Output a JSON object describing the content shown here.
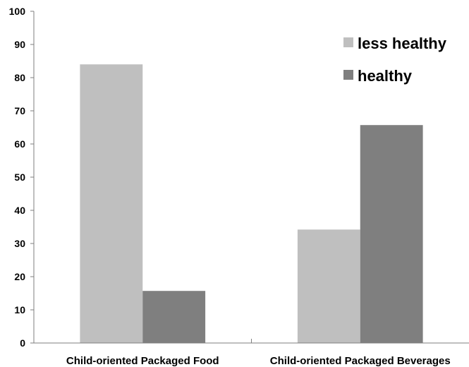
{
  "chart_data": {
    "type": "bar",
    "categories": [
      "Child-oriented Packaged Food",
      "Child-oriented Packaged Beverages"
    ],
    "series": [
      {
        "name": "less healthy",
        "values": [
          84,
          34.2
        ],
        "color": "#bfbfbf"
      },
      {
        "name": "healthy",
        "values": [
          15.7,
          65.7
        ],
        "color": "#7f7f7f"
      }
    ],
    "title": "",
    "xlabel": "",
    "ylabel": "",
    "ylim": [
      0,
      100
    ],
    "yticks": [
      0,
      10,
      20,
      30,
      40,
      50,
      60,
      70,
      80,
      90,
      100
    ],
    "grid": false,
    "legend_position": "top-right"
  }
}
